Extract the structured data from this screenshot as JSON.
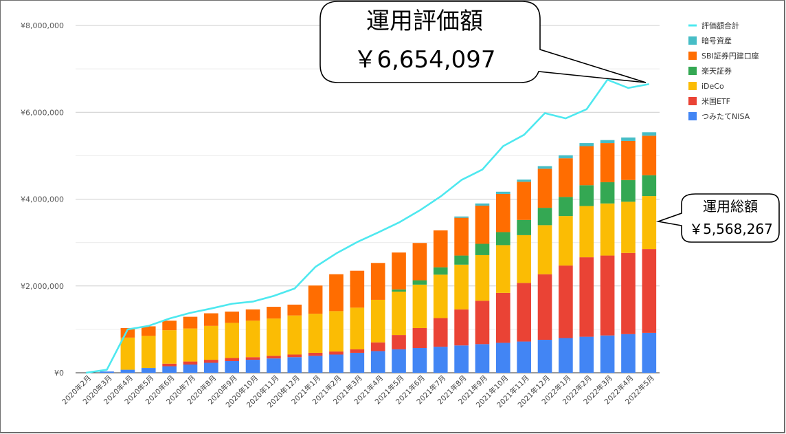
{
  "chart_data": {
    "type": "bar",
    "stacked": true,
    "categories": [
      "2020年2月",
      "2020年3月",
      "2020年4月",
      "2020年5月",
      "2020年6月",
      "2020年7月",
      "2020年8月",
      "2020年9月",
      "2020年10月",
      "2020年11月",
      "2020年12月",
      "2021年1月",
      "2021年2月",
      "2021年3月",
      "2021年4月",
      "2021年5月",
      "2021年6月",
      "2021年7月",
      "2021年8月",
      "2021年9月",
      "2021年10月",
      "2021年11月",
      "2021年12月",
      "2022年1月",
      "2022年2月",
      "2022年3月",
      "2022年4月",
      "2022年5月"
    ],
    "ylim": [
      0,
      8000000
    ],
    "y_ticks": [
      "¥0",
      "¥2,000,000",
      "¥4,000,000",
      "¥6,000,000",
      "¥8,000,000"
    ],
    "grid": true,
    "legend_position": "right",
    "series": [
      {
        "name": "つみたてNISA",
        "color": "#4285f4",
        "values": [
          0,
          30000,
          70000,
          110000,
          150000,
          190000,
          230000,
          270000,
          300000,
          330000,
          360000,
          390000,
          420000,
          460000,
          500000,
          540000,
          570000,
          600000,
          630000,
          660000,
          690000,
          720000,
          760000,
          800000,
          830000,
          860000,
          890000,
          920000
        ]
      },
      {
        "name": "米国ETF",
        "color": "#ea4335",
        "values": [
          0,
          0,
          0,
          0,
          60000,
          70000,
          70000,
          70000,
          60000,
          60000,
          60000,
          70000,
          70000,
          80000,
          200000,
          330000,
          460000,
          660000,
          830000,
          1000000,
          1150000,
          1350000,
          1510000,
          1670000,
          1830000,
          1840000,
          1870000,
          1930000
        ]
      },
      {
        "name": "iDeCo",
        "color": "#fbbc04",
        "values": [
          0,
          0,
          740000,
          740000,
          770000,
          760000,
          780000,
          810000,
          840000,
          860000,
          900000,
          900000,
          930000,
          960000,
          980000,
          1000000,
          1000000,
          1000000,
          1030000,
          1050000,
          1100000,
          1100000,
          1130000,
          1140000,
          1180000,
          1200000,
          1180000,
          1220000
        ]
      },
      {
        "name": "楽天証券",
        "color": "#34a853",
        "values": [
          0,
          0,
          0,
          0,
          0,
          0,
          0,
          0,
          0,
          0,
          0,
          0,
          0,
          0,
          0,
          50000,
          100000,
          170000,
          210000,
          260000,
          300000,
          350000,
          400000,
          440000,
          480000,
          490000,
          500000,
          480000
        ]
      },
      {
        "name": "SBI証券円建口座",
        "color": "#ff6d01",
        "values": [
          0,
          0,
          220000,
          220000,
          220000,
          270000,
          290000,
          260000,
          260000,
          270000,
          250000,
          650000,
          850000,
          850000,
          850000,
          850000,
          860000,
          850000,
          870000,
          880000,
          880000,
          880000,
          900000,
          890000,
          900000,
          900000,
          900000,
          910000
        ]
      },
      {
        "name": "暗号資産",
        "color": "#46bdc6",
        "values": [
          0,
          0,
          0,
          0,
          0,
          0,
          0,
          0,
          0,
          0,
          0,
          0,
          0,
          0,
          0,
          0,
          0,
          0,
          30000,
          50000,
          50000,
          50000,
          60000,
          70000,
          70000,
          70000,
          80000,
          80000
        ]
      },
      {
        "name": "評価額合計",
        "color": "#4ee8ef",
        "type": "line",
        "values": [
          0,
          70000,
          1000000,
          1080000,
          1250000,
          1380000,
          1480000,
          1590000,
          1640000,
          1770000,
          1940000,
          2440000,
          2750000,
          3010000,
          3230000,
          3460000,
          3740000,
          4060000,
          4440000,
          4680000,
          5220000,
          5480000,
          5980000,
          5860000,
          6070000,
          6750000,
          6560000,
          6650000
        ]
      }
    ]
  },
  "callouts": {
    "valuation_title": "運用評価額",
    "valuation_value": "￥6,654,097",
    "total_title": "運用総額",
    "total_value": "￥5,568,267"
  }
}
